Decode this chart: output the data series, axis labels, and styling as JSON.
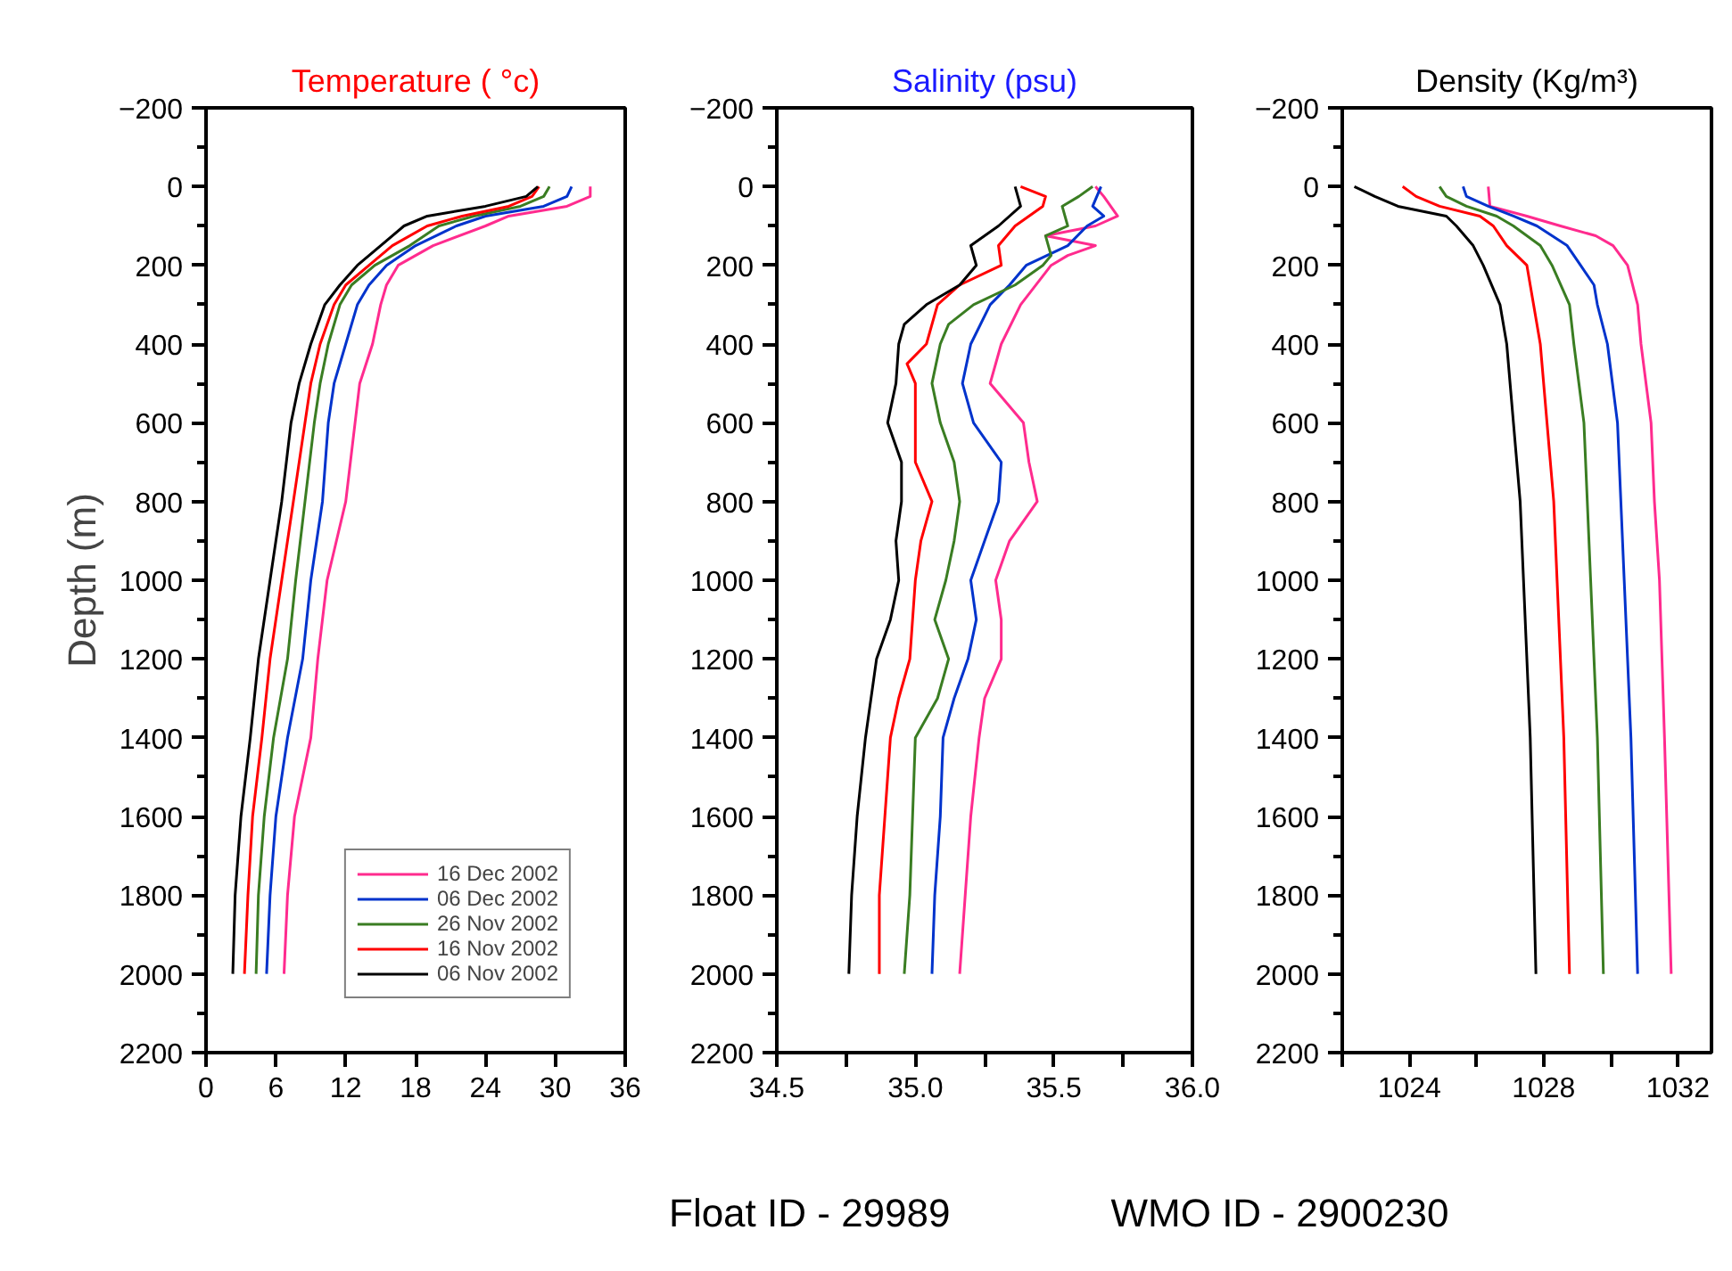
{
  "chart_data": [
    {
      "type": "line",
      "title": "Temperature ( °c)",
      "ylabel": "Depth (m)",
      "xlim": [
        0,
        36
      ],
      "xticks": [
        0,
        6,
        12,
        18,
        24,
        30,
        36
      ],
      "ylim": [
        2200,
        -200
      ],
      "yticks": [
        -200,
        0,
        200,
        400,
        600,
        800,
        1000,
        1200,
        1400,
        1600,
        1800,
        2000,
        2200
      ],
      "grid": false,
      "legend": "bottom right",
      "series": [
        {
          "name": "16 Dec 2002",
          "color": "#ff2b8e",
          "x": [
            33,
            33,
            31,
            26,
            24,
            19.5,
            16.5,
            15.5,
            15,
            14.3,
            13.2,
            12.8,
            12,
            10.4,
            9.6,
            9,
            7.6,
            7,
            6.7
          ],
          "values": [
            0,
            25,
            50,
            75,
            100,
            150,
            200,
            250,
            300,
            400,
            500,
            600,
            800,
            1000,
            1200,
            1400,
            1600,
            1800,
            2000
          ]
        },
        {
          "name": "06 Dec 2002",
          "color": "#0033cc",
          "x": [
            31.4,
            31,
            29,
            24,
            21.5,
            18,
            15.5,
            14,
            13,
            12,
            11,
            10.5,
            10,
            9,
            8.3,
            7,
            6,
            5.5,
            5.2
          ],
          "values": [
            0,
            25,
            50,
            75,
            100,
            150,
            200,
            250,
            300,
            400,
            500,
            600,
            800,
            1000,
            1200,
            1400,
            1600,
            1800,
            2000
          ]
        },
        {
          "name": "26 Nov 2002",
          "color": "#3a7d22",
          "x": [
            29.5,
            29,
            27,
            23,
            20,
            17.5,
            14.5,
            12.5,
            11.5,
            10.5,
            9.8,
            9.3,
            8.5,
            7.7,
            7,
            5.8,
            5,
            4.5,
            4.3
          ],
          "values": [
            0,
            25,
            50,
            75,
            100,
            150,
            200,
            250,
            300,
            400,
            500,
            600,
            800,
            1000,
            1200,
            1400,
            1600,
            1800,
            2000
          ]
        },
        {
          "name": "16 Nov 2002",
          "color": "#ff0000",
          "x": [
            28.6,
            28,
            26,
            22,
            19,
            16,
            14,
            12,
            11,
            9.8,
            9,
            8.5,
            7.5,
            6.5,
            5.5,
            4.8,
            4,
            3.6,
            3.3
          ],
          "values": [
            0,
            25,
            50,
            75,
            100,
            150,
            200,
            250,
            300,
            400,
            500,
            600,
            800,
            1000,
            1200,
            1400,
            1600,
            1800,
            2000
          ]
        },
        {
          "name": "06 Nov 2002",
          "color": "#000000",
          "x": [
            28.5,
            27.5,
            24,
            19,
            17,
            15,
            13,
            11.5,
            10.2,
            9,
            8,
            7.3,
            6.5,
            5.5,
            4.5,
            3.8,
            3,
            2.5,
            2.3
          ],
          "values": [
            0,
            25,
            50,
            75,
            100,
            150,
            200,
            250,
            300,
            400,
            500,
            600,
            800,
            1000,
            1200,
            1400,
            1600,
            1800,
            2000
          ]
        }
      ]
    },
    {
      "type": "line",
      "title": "Salinity (psu)",
      "xlim": [
        34.5,
        36.0
      ],
      "xticks": [
        {
          "value": 34.5,
          "label": "34.5"
        },
        {
          "value": 34.75,
          "label": null
        },
        {
          "value": 35.0,
          "label": "35.0"
        },
        {
          "value": 35.25,
          "label": null
        },
        {
          "value": 35.5,
          "label": "35.5"
        },
        {
          "value": 35.75,
          "label": null
        },
        {
          "value": 36.0,
          "label": "36.0"
        }
      ],
      "ylim": [
        2200,
        -200
      ],
      "yticks": [
        -200,
        0,
        200,
        400,
        600,
        800,
        1000,
        1200,
        1400,
        1600,
        1800,
        2000,
        2200
      ],
      "grid": false,
      "annotations": [
        "Float ID - 29989",
        "WMO ID - 2900230"
      ],
      "series": [
        {
          "color": "#ff2b8e",
          "x": [
            35.65,
            35.68,
            35.73,
            35.65,
            35.47,
            35.65,
            35.55,
            35.49,
            35.38,
            35.31,
            35.27,
            35.39,
            35.41,
            35.44,
            35.34,
            35.29,
            35.31,
            35.31,
            35.25,
            35.23,
            35.2,
            35.18,
            35.16
          ],
          "values": [
            0,
            25,
            75,
            100,
            125,
            150,
            175,
            200,
            300,
            400,
            500,
            600,
            700,
            800,
            900,
            1000,
            1100,
            1200,
            1300,
            1400,
            1600,
            1800,
            2000
          ]
        },
        {
          "color": "#0033cc",
          "x": [
            35.67,
            35.64,
            35.68,
            35.62,
            35.55,
            35.4,
            35.34,
            35.27,
            35.2,
            35.17,
            35.21,
            35.31,
            35.3,
            35.25,
            35.2,
            35.22,
            35.19,
            35.14,
            35.1,
            35.09,
            35.07,
            35.06
          ],
          "values": [
            0,
            50,
            75,
            100,
            150,
            200,
            250,
            300,
            400,
            500,
            600,
            700,
            800,
            900,
            1000,
            1100,
            1200,
            1300,
            1400,
            1600,
            1800,
            2000
          ]
        },
        {
          "color": "#3a7d22",
          "x": [
            35.64,
            35.59,
            35.53,
            35.55,
            35.47,
            35.49,
            35.46,
            35.36,
            35.21,
            35.12,
            35.09,
            35.06,
            35.09,
            35.14,
            35.16,
            35.14,
            35.11,
            35.07,
            35.12,
            35.08,
            35.0,
            34.99,
            34.98,
            34.96
          ],
          "values": [
            0,
            25,
            50,
            100,
            125,
            175,
            200,
            250,
            300,
            350,
            400,
            500,
            600,
            700,
            800,
            900,
            1000,
            1100,
            1200,
            1300,
            1400,
            1600,
            1800,
            2000
          ]
        },
        {
          "color": "#ff0000",
          "x": [
            35.38,
            35.47,
            35.46,
            35.36,
            35.3,
            35.31,
            35.16,
            35.08,
            35.04,
            34.97,
            35.0,
            35.0,
            35.06,
            35.02,
            35.0,
            34.98,
            34.94,
            34.91,
            34.9,
            34.89,
            34.87,
            34.87
          ],
          "values": [
            0,
            25,
            50,
            100,
            150,
            200,
            250,
            300,
            400,
            450,
            500,
            700,
            800,
            900,
            1000,
            1200,
            1300,
            1400,
            1500,
            1600,
            1800,
            2000
          ]
        },
        {
          "color": "#000000",
          "x": [
            35.36,
            35.38,
            35.3,
            35.2,
            35.22,
            35.16,
            35.04,
            34.96,
            34.94,
            34.93,
            34.9,
            34.95,
            34.95,
            34.93,
            34.94,
            34.91,
            34.86,
            34.82,
            34.79,
            34.77,
            34.76
          ],
          "values": [
            0,
            50,
            100,
            150,
            200,
            250,
            300,
            350,
            400,
            500,
            600,
            700,
            800,
            900,
            1000,
            1100,
            1200,
            1400,
            1600,
            1800,
            2000
          ]
        }
      ]
    },
    {
      "type": "line",
      "title": "Density (Kg/m³)",
      "xlim": [
        1022,
        1033
      ],
      "xticks": [
        {
          "value": 1022,
          "label": null
        },
        1024,
        {
          "value": 1026,
          "label": null
        },
        1028,
        {
          "value": 1030,
          "label": null
        },
        1032
      ],
      "ylim": [
        2200,
        -200
      ],
      "yticks": [
        -200,
        0,
        200,
        400,
        600,
        800,
        1000,
        1200,
        1400,
        1600,
        1800,
        2000,
        2200
      ],
      "grid": false,
      "series": [
        {
          "color": "#ff2b8e",
          "x": [
            1026.35,
            1026.4,
            1027.5,
            1028.5,
            1029.55,
            1030.07,
            1030.5,
            1030.8,
            1030.9,
            1031.2,
            1031.3,
            1031.45,
            1031.6,
            1031.8
          ],
          "values": [
            0,
            50,
            75,
            100,
            125,
            150,
            200,
            300,
            400,
            600,
            800,
            1000,
            1400,
            2000
          ]
        },
        {
          "color": "#0033cc",
          "x": [
            1025.6,
            1025.7,
            1026.35,
            1027.1,
            1027.8,
            1028.7,
            1029.1,
            1029.5,
            1029.6,
            1029.9,
            1030.2,
            1030.3,
            1030.4,
            1030.6,
            1030.8
          ],
          "values": [
            0,
            25,
            50,
            75,
            100,
            150,
            200,
            250,
            300,
            400,
            600,
            800,
            1000,
            1400,
            2000
          ]
        },
        {
          "color": "#3a7d22",
          "x": [
            1024.9,
            1025.1,
            1025.7,
            1026.6,
            1027.1,
            1027.9,
            1028.25,
            1028.77,
            1028.9,
            1029.2,
            1029.3,
            1029.4,
            1029.6,
            1029.78
          ],
          "values": [
            0,
            25,
            50,
            75,
            100,
            150,
            200,
            300,
            400,
            600,
            800,
            1000,
            1400,
            2000
          ]
        },
        {
          "color": "#ff0000",
          "x": [
            1023.8,
            1024.2,
            1024.9,
            1026.1,
            1026.5,
            1026.9,
            1027.5,
            1027.7,
            1027.9,
            1028.1,
            1028.3,
            1028.4,
            1028.6,
            1028.77
          ],
          "values": [
            0,
            25,
            50,
            75,
            100,
            150,
            200,
            300,
            400,
            600,
            800,
            1000,
            1400,
            2000
          ]
        },
        {
          "color": "#000000",
          "x": [
            1022.36,
            1022.97,
            1023.66,
            1025.1,
            1025.4,
            1025.9,
            1026.2,
            1026.7,
            1026.9,
            1027.1,
            1027.3,
            1027.4,
            1027.6,
            1027.77
          ],
          "values": [
            0,
            25,
            50,
            75,
            100,
            150,
            200,
            300,
            400,
            600,
            800,
            1000,
            1400,
            2000
          ]
        }
      ]
    }
  ]
}
